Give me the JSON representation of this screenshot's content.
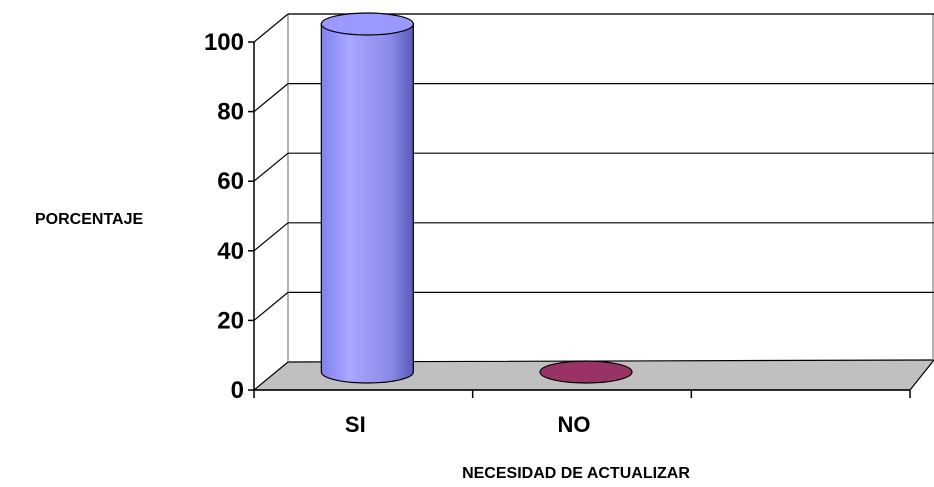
{
  "chart_data": {
    "type": "bar",
    "bar_style": "3d-cylinder",
    "categories": [
      "SI",
      "NO"
    ],
    "series": [
      {
        "values": [
          100,
          0
        ],
        "colors": [
          "#9999FF",
          "#993366"
        ]
      }
    ],
    "ylabel": "PORCENTAJE",
    "xlabel": "NECESIDAD DE ACTUALIZAR",
    "ylim": [
      0,
      100
    ],
    "yticks": [
      0,
      20,
      40,
      60,
      80,
      100
    ],
    "grid": true,
    "floor_color": "#C0C0C0"
  }
}
